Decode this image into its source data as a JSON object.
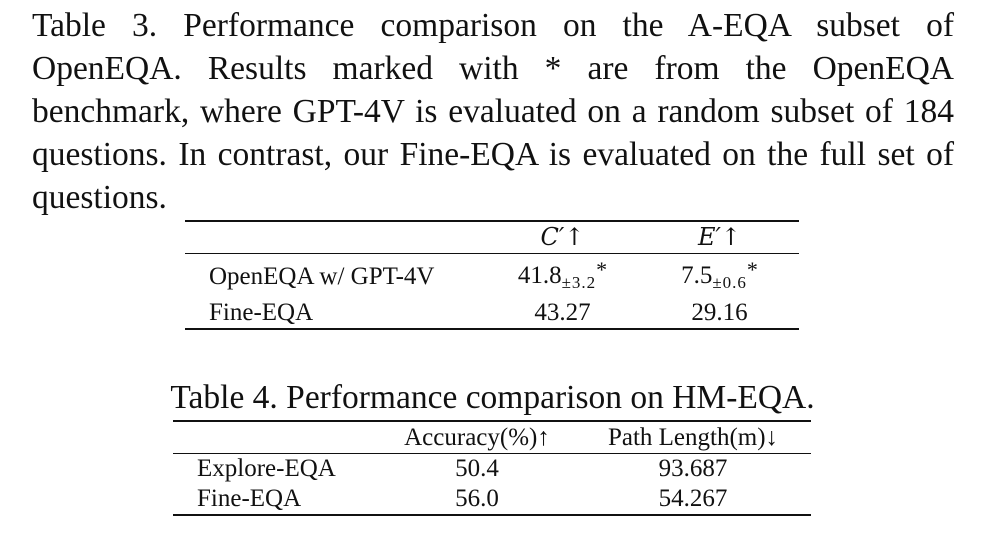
{
  "table3": {
    "caption": "Table 3.  Performance comparison on the A-EQA subset of OpenEQA. Results marked with * are from the OpenEQA benchmark, where GPT-4V is evaluated on a random subset of 184 questions.  In contrast, our Fine-EQA is evaluated on the full set of questions.",
    "headers": [
      "",
      "C′↑",
      "E′↑"
    ],
    "rows": [
      {
        "method": "OpenEQA w/ GPT-4V",
        "c_val": "41.8",
        "c_pm": "±3.2",
        "c_mark": "*",
        "e_val": "7.5",
        "e_pm": "±0.6",
        "e_mark": "*"
      },
      {
        "method": "Fine-EQA",
        "c_val": "43.27",
        "e_val": "29.16",
        "bold": true
      }
    ]
  },
  "table4": {
    "caption": "Table 4. Performance comparison on HM-EQA.",
    "headers": [
      "",
      "Accuracy(%)↑",
      "Path Length(m)↓"
    ],
    "rows": [
      {
        "method": "Explore-EQA",
        "accuracy": "50.4",
        "path_length": "93.687"
      },
      {
        "method": "Fine-EQA",
        "accuracy": "56.0",
        "path_length": "54.267",
        "bold": true
      }
    ]
  }
}
